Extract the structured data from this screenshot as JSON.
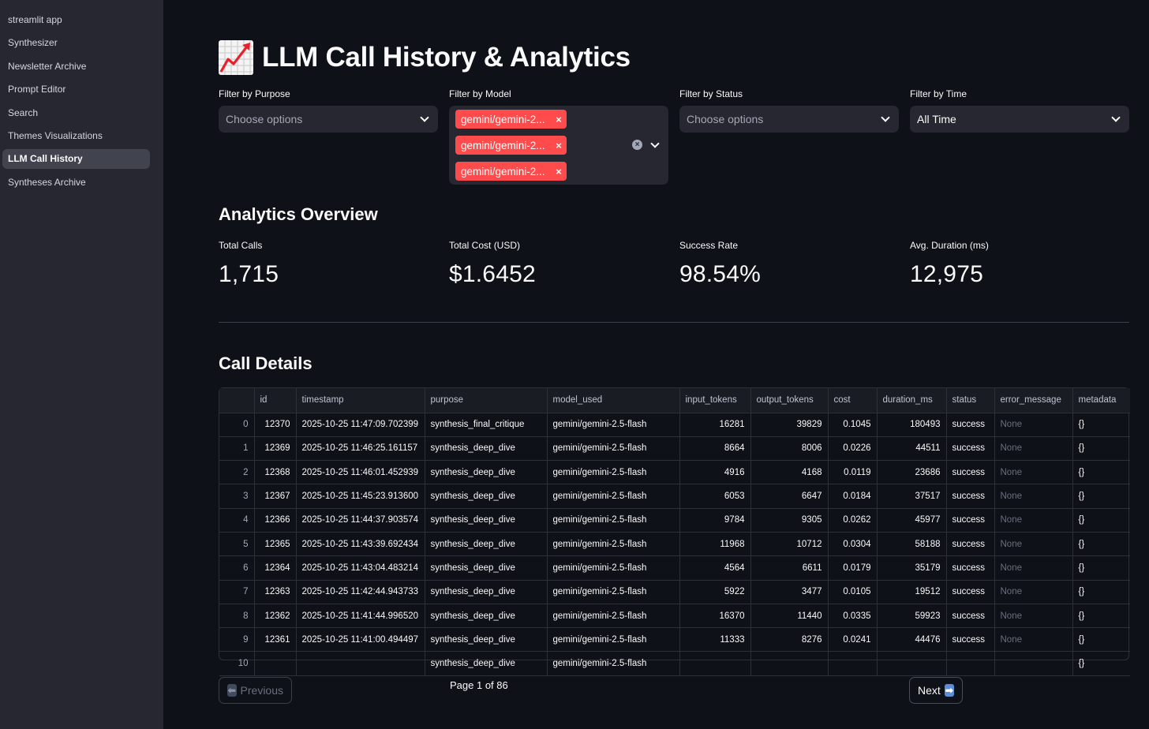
{
  "sidebar": {
    "items": [
      {
        "label": "streamlit app",
        "active": false
      },
      {
        "label": "Synthesizer",
        "active": false
      },
      {
        "label": "Newsletter Archive",
        "active": false
      },
      {
        "label": "Prompt Editor",
        "active": false
      },
      {
        "label": "Search",
        "active": false
      },
      {
        "label": "Themes Visualizations",
        "active": false
      },
      {
        "label": "LLM Call History",
        "active": true
      },
      {
        "label": "Syntheses Archive",
        "active": false
      }
    ]
  },
  "page": {
    "title": "LLM Call History & Analytics",
    "title_icon": "chart-increasing-icon"
  },
  "filters": {
    "purpose": {
      "label": "Filter by Purpose",
      "placeholder": "Choose options"
    },
    "model": {
      "label": "Filter by Model",
      "selected": [
        "gemini/gemini-2...",
        "gemini/gemini-2...",
        "gemini/gemini-2..."
      ],
      "remove_glyph": "×",
      "clear_glyph": "×"
    },
    "status": {
      "label": "Filter by Status",
      "placeholder": "Choose options"
    },
    "time": {
      "label": "Filter by Time",
      "value": "All Time"
    }
  },
  "analytics": {
    "heading": "Analytics Overview",
    "metrics": [
      {
        "label": "Total Calls",
        "value": "1,715"
      },
      {
        "label": "Total Cost (USD)",
        "value": "$1.6452"
      },
      {
        "label": "Success Rate",
        "value": "98.54%"
      },
      {
        "label": "Avg. Duration (ms)",
        "value": "12,975"
      }
    ]
  },
  "details": {
    "heading": "Call Details",
    "columns": [
      "",
      "id",
      "timestamp",
      "purpose",
      "model_used",
      "input_tokens",
      "output_tokens",
      "cost",
      "duration_ms",
      "status",
      "error_message",
      "metadata"
    ],
    "rows": [
      [
        "0",
        "12370",
        "2025-10-25 11:47:09.702399",
        "synthesis_final_critique",
        "gemini/gemini-2.5-flash",
        "16281",
        "39829",
        "0.1045",
        "180493",
        "success",
        "None",
        "{}"
      ],
      [
        "1",
        "12369",
        "2025-10-25 11:46:25.161157",
        "synthesis_deep_dive",
        "gemini/gemini-2.5-flash",
        "8664",
        "8006",
        "0.0226",
        "44511",
        "success",
        "None",
        "{}"
      ],
      [
        "2",
        "12368",
        "2025-10-25 11:46:01.452939",
        "synthesis_deep_dive",
        "gemini/gemini-2.5-flash",
        "4916",
        "4168",
        "0.0119",
        "23686",
        "success",
        "None",
        "{}"
      ],
      [
        "3",
        "12367",
        "2025-10-25 11:45:23.913600",
        "synthesis_deep_dive",
        "gemini/gemini-2.5-flash",
        "6053",
        "6647",
        "0.0184",
        "37517",
        "success",
        "None",
        "{}"
      ],
      [
        "4",
        "12366",
        "2025-10-25 11:44:37.903574",
        "synthesis_deep_dive",
        "gemini/gemini-2.5-flash",
        "9784",
        "9305",
        "0.0262",
        "45977",
        "success",
        "None",
        "{}"
      ],
      [
        "5",
        "12365",
        "2025-10-25 11:43:39.692434",
        "synthesis_deep_dive",
        "gemini/gemini-2.5-flash",
        "11968",
        "10712",
        "0.0304",
        "58188",
        "success",
        "None",
        "{}"
      ],
      [
        "6",
        "12364",
        "2025-10-25 11:43:04.483214",
        "synthesis_deep_dive",
        "gemini/gemini-2.5-flash",
        "4564",
        "6611",
        "0.0179",
        "35179",
        "success",
        "None",
        "{}"
      ],
      [
        "7",
        "12363",
        "2025-10-25 11:42:44.943733",
        "synthesis_deep_dive",
        "gemini/gemini-2.5-flash",
        "5922",
        "3477",
        "0.0105",
        "19512",
        "success",
        "None",
        "{}"
      ],
      [
        "8",
        "12362",
        "2025-10-25 11:41:44.996520",
        "synthesis_deep_dive",
        "gemini/gemini-2.5-flash",
        "16370",
        "11440",
        "0.0335",
        "59923",
        "success",
        "None",
        "{}"
      ],
      [
        "9",
        "12361",
        "2025-10-25 11:41:00.494497",
        "synthesis_deep_dive",
        "gemini/gemini-2.5-flash",
        "11333",
        "8276",
        "0.0241",
        "44476",
        "success",
        "None",
        "{}"
      ],
      [
        "10",
        "",
        "",
        "synthesis_deep_dive",
        "gemini/gemini-2.5-flash",
        "",
        "",
        "",
        "",
        "",
        "",
        "{}"
      ]
    ]
  },
  "pagination": {
    "prev_label": "Previous",
    "prev_icon": "left-arrow-icon",
    "prev_glyph": "⬅",
    "page_text": "Page 1 of 86",
    "next_label": "Next",
    "next_icon": "right-arrow-icon",
    "next_glyph": "➡"
  },
  "colors": {
    "background": "#0e1117",
    "sidebar": "#262730",
    "accent_tag": "#ff4b4b"
  }
}
